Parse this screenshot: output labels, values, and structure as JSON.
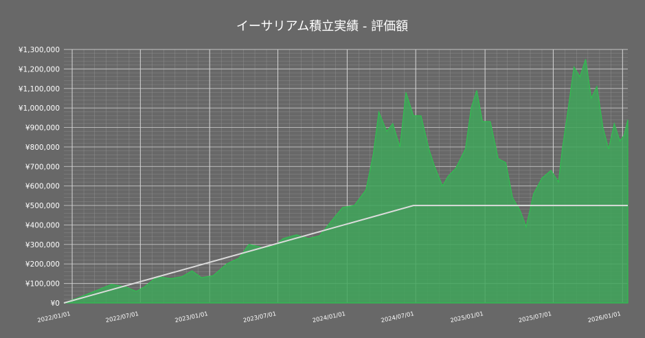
{
  "colors": {
    "background": "#686868",
    "grid": "#9a9a9a",
    "area_fill": "#3fa65a",
    "area_stroke": "#2fbf4f",
    "invested_line": "#dcdcdc",
    "text": "#ffffff"
  },
  "chart_data": {
    "type": "area",
    "title": "イーサリアム積立実績 - 評価額",
    "xlabel": "",
    "ylabel": "",
    "x_range": [
      "2021-12-10",
      "2026-01-15"
    ],
    "ylim": [
      0,
      1300000
    ],
    "grid": true,
    "legend": "none",
    "y_ticks": [
      {
        "value": 0,
        "label": "¥0"
      },
      {
        "value": 100000,
        "label": "¥100,000"
      },
      {
        "value": 200000,
        "label": "¥200,000"
      },
      {
        "value": 300000,
        "label": "¥300,000"
      },
      {
        "value": 400000,
        "label": "¥400,000"
      },
      {
        "value": 500000,
        "label": "¥500,000"
      },
      {
        "value": 600000,
        "label": "¥600,000"
      },
      {
        "value": 700000,
        "label": "¥700,000"
      },
      {
        "value": 800000,
        "label": "¥800,000"
      },
      {
        "value": 900000,
        "label": "¥900,000"
      },
      {
        "value": 1000000,
        "label": "¥1,000,000"
      },
      {
        "value": 1100000,
        "label": "¥1,100,000"
      },
      {
        "value": 1200000,
        "label": "¥1,200,000"
      },
      {
        "value": 1300000,
        "label": "¥1,300,000"
      }
    ],
    "x_ticks": [
      {
        "date": "2022-01-01",
        "label": "2022/01/01"
      },
      {
        "date": "2022-07-01",
        "label": "2022/07/01"
      },
      {
        "date": "2023-01-01",
        "label": "2023/01/01"
      },
      {
        "date": "2023-07-01",
        "label": "2023/07/01"
      },
      {
        "date": "2024-01-01",
        "label": "2024/01/01"
      },
      {
        "date": "2024-07-01",
        "label": "2024/07/01"
      },
      {
        "date": "2025-01-01",
        "label": "2025/01/01"
      },
      {
        "date": "2025-07-01",
        "label": "2025/07/01"
      },
      {
        "date": "2026-01-01",
        "label": "2026/01/01"
      }
    ],
    "series": [
      {
        "kind": "area",
        "points": [
          [
            "2021-12-10",
            0
          ],
          [
            "2022-01-15",
            25000
          ],
          [
            "2022-03-01",
            60000
          ],
          [
            "2022-04-15",
            95000
          ],
          [
            "2022-05-20",
            85000
          ],
          [
            "2022-06-20",
            60000
          ],
          [
            "2022-07-10",
            80000
          ],
          [
            "2022-08-15",
            135000
          ],
          [
            "2022-09-20",
            125000
          ],
          [
            "2022-10-20",
            135000
          ],
          [
            "2022-11-15",
            165000
          ],
          [
            "2022-12-10",
            130000
          ],
          [
            "2023-01-10",
            140000
          ],
          [
            "2023-02-15",
            200000
          ],
          [
            "2023-03-20",
            230000
          ],
          [
            "2023-04-15",
            300000
          ],
          [
            "2023-05-20",
            285000
          ],
          [
            "2023-06-20",
            290000
          ],
          [
            "2023-07-15",
            330000
          ],
          [
            "2023-08-20",
            350000
          ],
          [
            "2023-09-20",
            330000
          ],
          [
            "2023-10-20",
            345000
          ],
          [
            "2023-11-20",
            420000
          ],
          [
            "2023-12-20",
            490000
          ],
          [
            "2024-01-20",
            500000
          ],
          [
            "2024-02-20",
            580000
          ],
          [
            "2024-03-10",
            760000
          ],
          [
            "2024-03-25",
            980000
          ],
          [
            "2024-04-15",
            880000
          ],
          [
            "2024-05-01",
            920000
          ],
          [
            "2024-05-20",
            800000
          ],
          [
            "2024-06-05",
            1080000
          ],
          [
            "2024-06-25",
            960000
          ],
          [
            "2024-07-15",
            960000
          ],
          [
            "2024-08-05",
            790000
          ],
          [
            "2024-08-20",
            700000
          ],
          [
            "2024-09-10",
            600000
          ],
          [
            "2024-09-25",
            650000
          ],
          [
            "2024-10-15",
            690000
          ],
          [
            "2024-11-10",
            790000
          ],
          [
            "2024-11-25",
            1000000
          ],
          [
            "2024-12-10",
            1090000
          ],
          [
            "2024-12-25",
            930000
          ],
          [
            "2025-01-15",
            930000
          ],
          [
            "2025-02-05",
            740000
          ],
          [
            "2025-02-25",
            720000
          ],
          [
            "2025-03-15",
            540000
          ],
          [
            "2025-04-05",
            470000
          ],
          [
            "2025-04-20",
            390000
          ],
          [
            "2025-05-10",
            560000
          ],
          [
            "2025-06-01",
            640000
          ],
          [
            "2025-06-25",
            680000
          ],
          [
            "2025-07-15",
            620000
          ],
          [
            "2025-07-25",
            790000
          ],
          [
            "2025-08-10",
            1000000
          ],
          [
            "2025-08-25",
            1210000
          ],
          [
            "2025-09-10",
            1160000
          ],
          [
            "2025-09-25",
            1250000
          ],
          [
            "2025-10-10",
            1050000
          ],
          [
            "2025-10-25",
            1110000
          ],
          [
            "2025-11-10",
            900000
          ],
          [
            "2025-11-25",
            790000
          ],
          [
            "2025-12-10",
            920000
          ],
          [
            "2025-12-25",
            830000
          ],
          [
            "2026-01-05",
            860000
          ],
          [
            "2026-01-15",
            940000
          ]
        ]
      },
      {
        "kind": "line",
        "points": [
          [
            "2021-12-10",
            0
          ],
          [
            "2024-06-25",
            500000
          ],
          [
            "2026-01-15",
            500000
          ]
        ]
      }
    ]
  }
}
